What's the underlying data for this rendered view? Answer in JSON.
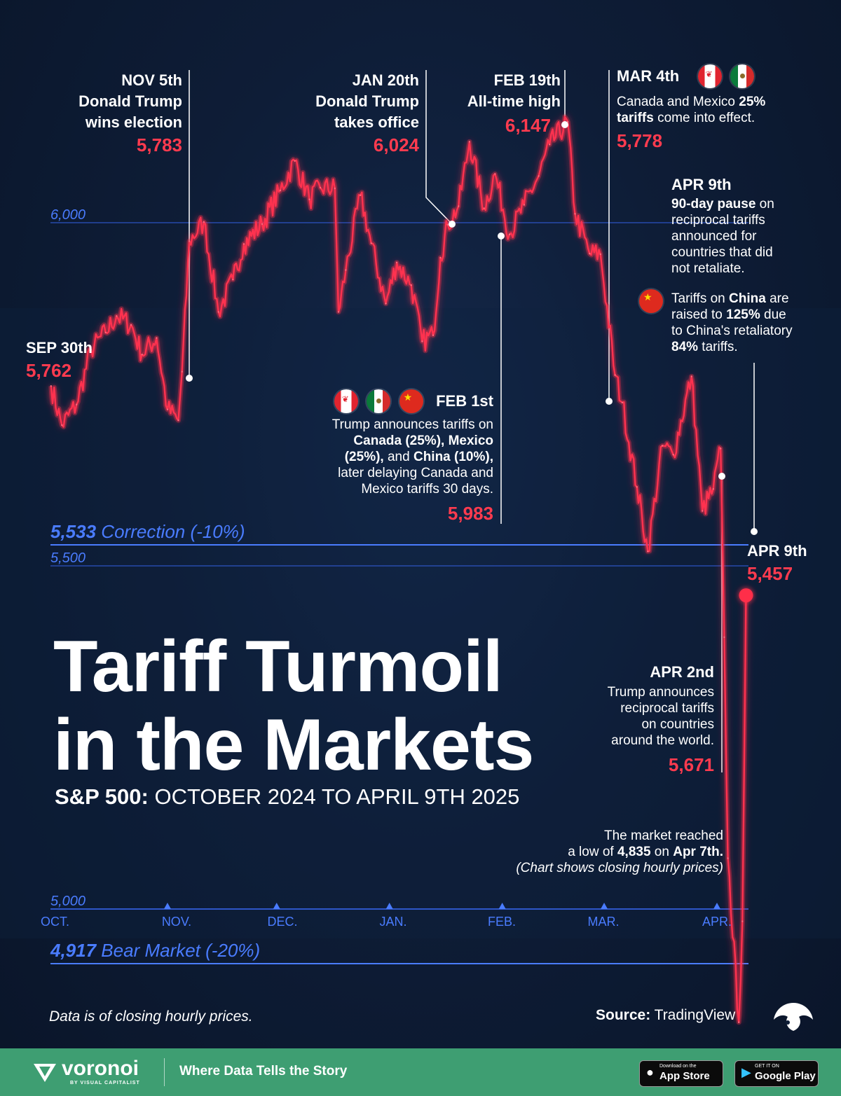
{
  "title": {
    "line1": "Tariff Turmoil",
    "line2": "in the Markets"
  },
  "subtitle": {
    "bold": "S&P 500:",
    "rest": " OCTOBER 2024 TO APRIL 9TH 2025"
  },
  "colors": {
    "background": "#0e1d37",
    "line": "#ff2d48",
    "accent_red": "#ff3b4f",
    "accent_blue": "#4a7cff",
    "gridline": "#2e56c8",
    "footer": "#3e9e72"
  },
  "annotations": {
    "sep30": {
      "date": "SEP 30th",
      "value": "5,762"
    },
    "nov5": {
      "date": "NOV 5th",
      "line1": "Donald Trump",
      "line2": "wins election",
      "value": "5,783"
    },
    "jan20": {
      "date": "JAN 20th",
      "line1": "Donald Trump",
      "line2": "takes office",
      "value": "6,024"
    },
    "feb19": {
      "date": "FEB 19th",
      "line1": "All-time high",
      "value": "6,147"
    },
    "mar4": {
      "date": "MAR 4th",
      "t1": "Canada and Mexico ",
      "t1b": "25%",
      "t2b": "tariffs",
      "t2": " come into effect.",
      "value": "5,778"
    },
    "apr9note": {
      "date": "APR 9th",
      "l1b": "90-day pause",
      "l1": " on",
      "l2": "reciprocal tariffs",
      "l3": "announced for",
      "l4": "countries that did",
      "l5": "not retaliate.",
      "c1": "Tariffs on ",
      "c1b": "China",
      "c1e": " are",
      "c2": "raised to ",
      "c2b": "125%",
      "c2e": " due",
      "c3": "to China's retaliatory",
      "c4b": "84%",
      "c4": " tariffs."
    },
    "feb1": {
      "date": "FEB 1st",
      "l1": "Trump announces tariffs on",
      "l2b": "Canada (25%), Mexico",
      "l3b": "(25%),",
      "l3": " and ",
      "l3c": "China (10%),",
      "l4": "later delaying Canada and",
      "l5": "Mexico tariffs 30 days.",
      "value": "5,983"
    },
    "apr9": {
      "date": "APR 9th",
      "value": "5,457"
    },
    "apr2": {
      "date": "APR 2nd",
      "l1": "Trump announces",
      "l2": "reciprocal tariffs",
      "l3": "on countries",
      "l4": "around the world.",
      "value": "5,671"
    },
    "low": {
      "l1": "The market reached",
      "l2": "a low of ",
      "l2b": "4,835",
      "l2c": " on ",
      "l2d": "Apr 7th.",
      "l3": "(Chart shows closing hourly prices)"
    }
  },
  "reference_lines": {
    "correction": {
      "value": "5,533",
      "label": " Correction (-10%)"
    },
    "bear": {
      "value": "4,917",
      "label": " Bear Market (-20%)"
    }
  },
  "footnote": "Data is of closing hourly prices.",
  "source": {
    "label": "Source:",
    "value": " TradingView"
  },
  "footer": {
    "brand": "voronoi",
    "brand_sub": "BY VISUAL CAPITALIST",
    "tagline": "Where Data Tells the Story",
    "appstore_small": "Download on the",
    "appstore_big": "App Store",
    "googleplay_small": "GET IT ON",
    "googleplay_big": "Google Play"
  },
  "chart_data": {
    "type": "line",
    "title": "Tariff Turmoil in the Markets",
    "subtitle": "S&P 500: OCTOBER 2024 TO APRIL 9TH 2025",
    "ylim": [
      4800,
      6200
    ],
    "y_ticks": [
      "6,000",
      "5,500",
      "5,000"
    ],
    "x_ticks": [
      "OCT.",
      "NOV.",
      "DEC.",
      "JAN.",
      "FEB.",
      "MAR.",
      "APR."
    ],
    "reference_lines": [
      {
        "value": 5533,
        "label": "Correction (-10%)"
      },
      {
        "value": 4917,
        "label": "Bear Market (-20%)"
      }
    ],
    "grid": "horizontal",
    "series": [
      {
        "x": [
          "2024-09-30",
          "2024-10-03",
          "2024-10-07",
          "2024-10-11",
          "2024-10-15",
          "2024-10-18",
          "2024-10-22",
          "2024-10-25",
          "2024-10-29",
          "2024-11-01",
          "2024-11-04",
          "2024-11-05",
          "2024-11-07",
          "2024-11-11",
          "2024-11-15",
          "2024-11-19",
          "2024-11-22",
          "2024-11-27",
          "2024-12-02",
          "2024-12-06",
          "2024-12-10",
          "2024-12-13",
          "2024-12-17",
          "2024-12-18",
          "2024-12-20",
          "2024-12-24",
          "2024-12-27",
          "2024-12-31",
          "2025-01-03",
          "2025-01-07",
          "2025-01-10",
          "2025-01-13",
          "2025-01-15",
          "2025-01-17",
          "2025-01-20",
          "2025-01-23",
          "2025-01-27",
          "2025-01-30",
          "2025-02-03",
          "2025-02-07",
          "2025-02-11",
          "2025-02-14",
          "2025-02-19",
          "2025-02-21",
          "2025-02-25",
          "2025-02-28",
          "2025-03-04",
          "2025-03-06",
          "2025-03-10",
          "2025-03-13",
          "2025-03-17",
          "2025-03-20",
          "2025-03-25",
          "2025-03-28",
          "2025-03-31",
          "2025-04-02",
          "2025-04-03",
          "2025-04-04",
          "2025-04-07",
          "2025-04-08",
          "2025-04-09"
        ],
        "values": [
          5762,
          5705,
          5735,
          5815,
          5840,
          5864,
          5851,
          5808,
          5832,
          5728,
          5712,
          5783,
          5973,
          6001,
          5870,
          5917,
          5969,
          5998,
          6047,
          6090,
          6034,
          6051,
          6050,
          5870,
          5931,
          6040,
          5970,
          5882,
          5942,
          5909,
          5827,
          5836,
          5949,
          5997,
          6024,
          6118,
          6021,
          6071,
          5983,
          6026,
          6068,
          6114,
          6147,
          6013,
          5955,
          5954,
          5778,
          5738,
          5615,
          5521,
          5675,
          5662,
          5776,
          5580,
          5612,
          5671,
          5396,
          5074,
          4835,
          4982,
          5457
        ]
      }
    ]
  }
}
